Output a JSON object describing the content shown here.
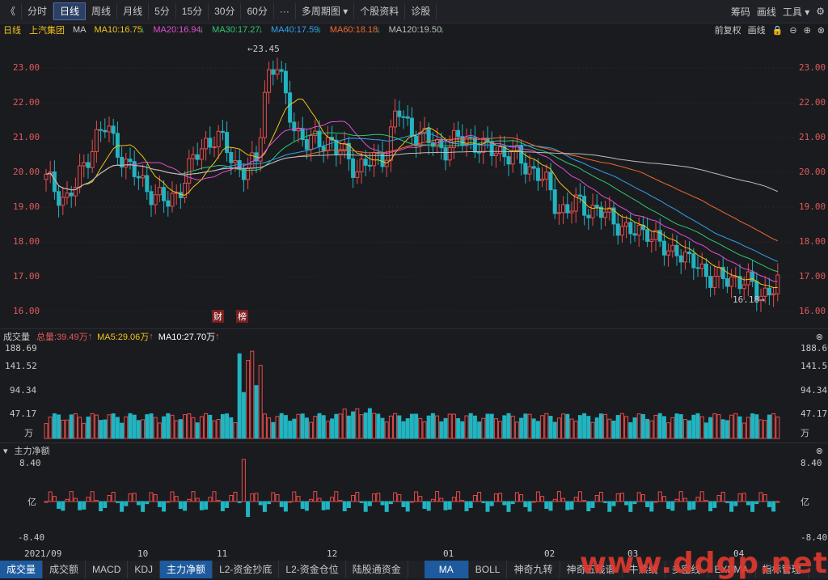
{
  "toolbar": {
    "collapse": "《",
    "periods": [
      "分时",
      "日线",
      "周线",
      "月线",
      "5分",
      "15分",
      "30分",
      "60分"
    ],
    "more": "···",
    "multi_period": "多周期图",
    "stock_info": "个股资料",
    "diagnose": "诊股",
    "right": [
      "筹码",
      "画线",
      "工具"
    ]
  },
  "ma_bar": {
    "period": "日线",
    "stock": "上汽集团",
    "ma_label": "MA",
    "items": [
      {
        "text": "MA10:16.75",
        "color": "#f0c419"
      },
      {
        "text": "MA20:16.94",
        "color": "#e24fd0"
      },
      {
        "text": "MA30:17.27",
        "color": "#2ec96e"
      },
      {
        "text": "MA40:17.59",
        "color": "#2fa2f0"
      },
      {
        "text": "MA60:18.18",
        "color": "#f06a2e"
      },
      {
        "text": "MA120:19.50",
        "color": "#bdbdbd"
      }
    ],
    "right": [
      "前复权",
      "画线"
    ]
  },
  "price_axis": [
    "23.00",
    "22.00",
    "21.00",
    "20.00",
    "19.00",
    "18.00",
    "17.00",
    "16.00"
  ],
  "annotations": {
    "high": "←23.45",
    "low": "16.18→",
    "tag1": "财",
    "tag2": "榜"
  },
  "volume": {
    "label": "成交量",
    "total": "总量:39.49万",
    "ma5": "MA5:29.06万",
    "ma10": "MA10:27.70万",
    "axis": [
      "188.69",
      "141.52",
      "94.34",
      "47.17",
      "万"
    ]
  },
  "money": {
    "label": "主力净额",
    "axis": [
      "8.40",
      "亿",
      "-8.40"
    ]
  },
  "date_axis": [
    "2021/09",
    "10",
    "11",
    "12",
    "01",
    "02",
    "03",
    "04"
  ],
  "bottom_tabs": [
    "成交量",
    "成交额",
    "MACD",
    "KDJ",
    "主力净额",
    "L2-资金抄底",
    "L2-资金仓位",
    "陆股通资金",
    "MA",
    "BOLL",
    "神奇九转",
    "神奇五线谱",
    "牛熊线",
    "多空线",
    "EXPMA",
    "指标管理"
  ],
  "watermark": "www.ddgp.net",
  "chart_data": {
    "type": "candlestick",
    "title": "上汽集团",
    "y_range": [
      16.0,
      23.45
    ],
    "close_trend": [
      19.8,
      19.5,
      19.2,
      19.6,
      20.4,
      21.0,
      21.3,
      20.8,
      20.2,
      19.9,
      19.6,
      19.3,
      19.1,
      19.4,
      19.9,
      20.5,
      20.9,
      21.0,
      20.7,
      20.2,
      20.0,
      20.3,
      22.8,
      23.1,
      22.0,
      21.2,
      20.8,
      20.9,
      21.0,
      20.6,
      20.5,
      20.1,
      20.2,
      20.4,
      20.6,
      21.8,
      21.4,
      21.1,
      20.9,
      20.8,
      20.7,
      20.9,
      21.0,
      20.8,
      20.6,
      20.7,
      20.5,
      20.4,
      20.2,
      20.0,
      19.6,
      19.0,
      18.9,
      19.1,
      19.0,
      18.9,
      18.7,
      18.6,
      18.3,
      18.2,
      18.4,
      18.0,
      17.6,
      17.9,
      17.4,
      17.3,
      17.1,
      16.9,
      16.9,
      17.0,
      16.8,
      16.5,
      16.6,
      16.8
    ]
  }
}
